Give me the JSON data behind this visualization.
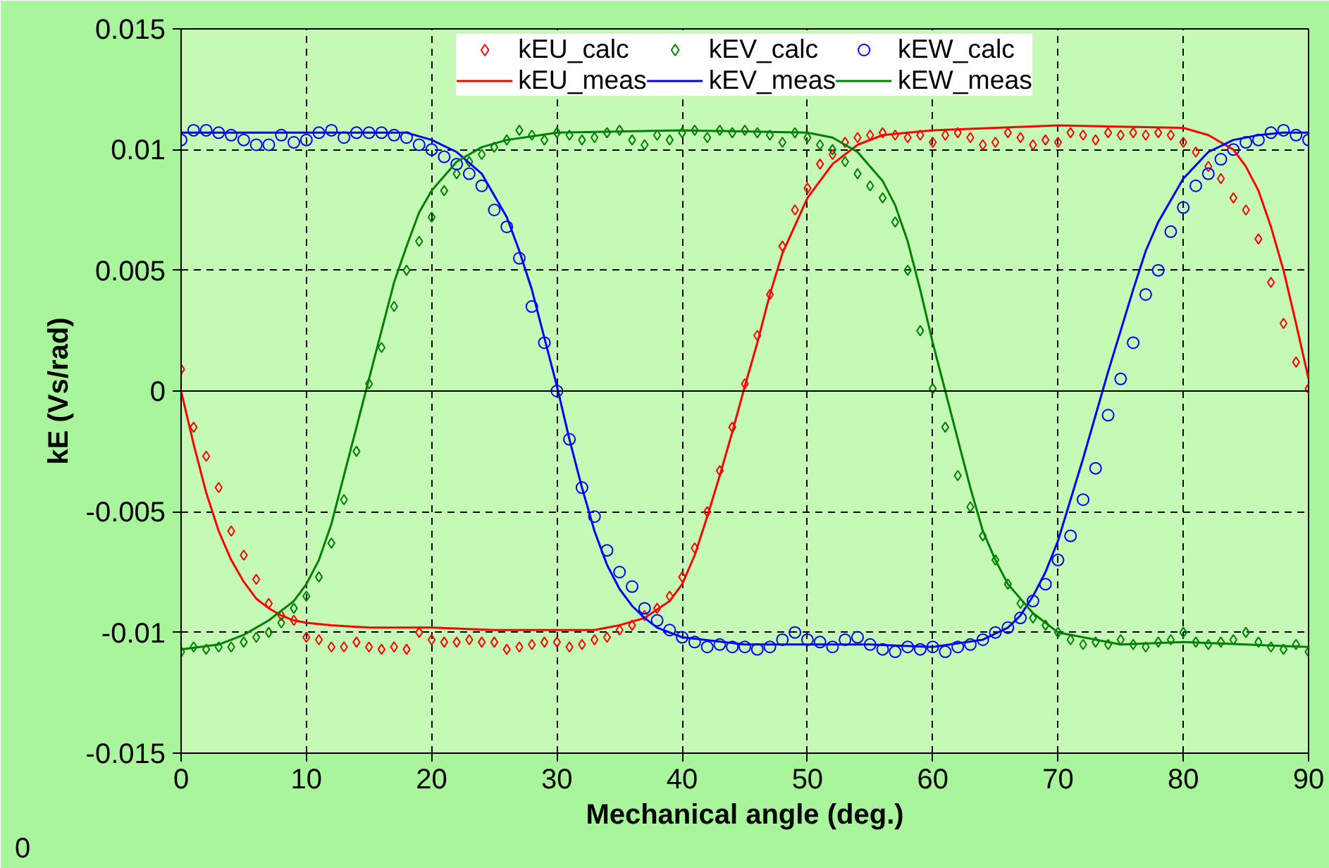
{
  "chart_data": {
    "type": "scatter",
    "xlabel": "Mechanical angle (deg.)",
    "ylabel": "kE (Vs/rad)",
    "annotations": [
      "0"
    ],
    "xlim": [
      0,
      90
    ],
    "xticks": [
      0,
      10,
      20,
      30,
      40,
      50,
      60,
      70,
      80,
      90
    ],
    "ylim": [
      -0.015,
      0.015
    ],
    "yticks": [
      -0.015,
      -0.01,
      -0.005,
      0,
      0.005,
      0.01,
      0.015
    ],
    "grid": true,
    "legend": "top",
    "series": [
      {
        "name": "kEU_calc",
        "marker": "diamond",
        "color": "#ff0000",
        "x": [
          0,
          1,
          2,
          3,
          4,
          5,
          6,
          7,
          8,
          9,
          10,
          11,
          12,
          13,
          14,
          15,
          16,
          17,
          18,
          19,
          20,
          21,
          22,
          23,
          24,
          25,
          26,
          27,
          28,
          29,
          30,
          31,
          32,
          33,
          34,
          35,
          36,
          37,
          38,
          39,
          40,
          41,
          42,
          43,
          44,
          45,
          46,
          47,
          48,
          49,
          50,
          51,
          52,
          53,
          54,
          55,
          56,
          57,
          58,
          59,
          60,
          61,
          62,
          63,
          64,
          65,
          66,
          67,
          68,
          69,
          70,
          71,
          72,
          73,
          74,
          75,
          76,
          77,
          78,
          79,
          80,
          81,
          82,
          83,
          84,
          85,
          86,
          87,
          88,
          89,
          90
        ],
        "values": [
          0.0009,
          -0.0015,
          -0.0027,
          -0.004,
          -0.0058,
          -0.0068,
          -0.0078,
          -0.0088,
          -0.0093,
          -0.0095,
          -0.0102,
          -0.0103,
          -0.0106,
          -0.0106,
          -0.0104,
          -0.0106,
          -0.0107,
          -0.0106,
          -0.0107,
          -0.01,
          -0.0103,
          -0.0104,
          -0.0104,
          -0.0103,
          -0.0104,
          -0.0104,
          -0.0107,
          -0.0106,
          -0.0105,
          -0.0104,
          -0.0104,
          -0.0106,
          -0.0105,
          -0.0103,
          -0.0102,
          -0.0099,
          -0.0097,
          -0.0093,
          -0.009,
          -0.0085,
          -0.0077,
          -0.0065,
          -0.005,
          -0.0033,
          -0.0015,
          0.0003,
          0.0023,
          0.004,
          0.006,
          0.0075,
          0.0084,
          0.0094,
          0.0098,
          0.0103,
          0.0105,
          0.0106,
          0.0107,
          0.0106,
          0.0105,
          0.0106,
          0.0103,
          0.0106,
          0.0107,
          0.0105,
          0.0102,
          0.0103,
          0.0107,
          0.0105,
          0.0102,
          0.0104,
          0.0103,
          0.0107,
          0.0106,
          0.0104,
          0.0107,
          0.0106,
          0.0107,
          0.0106,
          0.0107,
          0.0106,
          0.0103,
          0.0099,
          0.0093,
          0.0088,
          0.008,
          0.0075,
          0.0063,
          0.0045,
          0.0028,
          0.0012,
          0.0001
        ]
      },
      {
        "name": "kEV_calc",
        "marker": "diamond",
        "color": "#008000",
        "x": [
          0,
          1,
          2,
          3,
          4,
          5,
          6,
          7,
          8,
          9,
          10,
          11,
          12,
          13,
          14,
          15,
          16,
          17,
          18,
          19,
          20,
          21,
          22,
          23,
          24,
          25,
          26,
          27,
          28,
          29,
          30,
          31,
          32,
          33,
          34,
          35,
          36,
          37,
          38,
          39,
          40,
          41,
          42,
          43,
          44,
          45,
          46,
          47,
          48,
          49,
          50,
          51,
          52,
          53,
          54,
          55,
          56,
          57,
          58,
          59,
          60,
          61,
          62,
          63,
          64,
          65,
          66,
          67,
          68,
          69,
          70,
          71,
          72,
          73,
          74,
          75,
          76,
          77,
          78,
          79,
          80,
          81,
          82,
          83,
          84,
          85,
          86,
          87,
          88,
          89,
          90
        ],
        "values": [
          -0.0108,
          -0.0106,
          -0.0107,
          -0.0106,
          -0.0106,
          -0.0104,
          -0.0102,
          -0.01,
          -0.0096,
          -0.009,
          -0.0085,
          -0.0077,
          -0.0063,
          -0.0045,
          -0.0025,
          0.0003,
          0.0018,
          0.0035,
          0.005,
          0.0062,
          0.0072,
          0.0083,
          0.009,
          0.0095,
          0.0098,
          0.0101,
          0.0104,
          0.0108,
          0.0106,
          0.0104,
          0.0107,
          0.0106,
          0.0104,
          0.0105,
          0.0107,
          0.0108,
          0.0104,
          0.0102,
          0.0106,
          0.0104,
          0.0107,
          0.0108,
          0.0105,
          0.0108,
          0.0107,
          0.0108,
          0.0107,
          0.0106,
          0.0103,
          0.0107,
          0.0105,
          0.0102,
          0.01,
          0.0095,
          0.009,
          0.0085,
          0.008,
          0.007,
          0.005,
          0.0025,
          0.0001,
          -0.0015,
          -0.0035,
          -0.0048,
          -0.006,
          -0.007,
          -0.008,
          -0.0088,
          -0.0094,
          -0.0097,
          -0.01,
          -0.0103,
          -0.0105,
          -0.0104,
          -0.0105,
          -0.0103,
          -0.0105,
          -0.0106,
          -0.0104,
          -0.0103,
          -0.01,
          -0.0104,
          -0.0105,
          -0.0104,
          -0.0103,
          -0.01,
          -0.0104,
          -0.0106,
          -0.0107,
          -0.0105,
          -0.0108
        ]
      },
      {
        "name": "kEW_calc",
        "marker": "circle",
        "color": "#0000ff",
        "x": [
          0,
          1,
          2,
          3,
          4,
          5,
          6,
          7,
          8,
          9,
          10,
          11,
          12,
          13,
          14,
          15,
          16,
          17,
          18,
          19,
          20,
          21,
          22,
          23,
          24,
          25,
          26,
          27,
          28,
          29,
          30,
          31,
          32,
          33,
          34,
          35,
          36,
          37,
          38,
          39,
          40,
          41,
          42,
          43,
          44,
          45,
          46,
          47,
          48,
          49,
          50,
          51,
          52,
          53,
          54,
          55,
          56,
          57,
          58,
          59,
          60,
          61,
          62,
          63,
          64,
          65,
          66,
          67,
          68,
          69,
          70,
          71,
          72,
          73,
          74,
          75,
          76,
          77,
          78,
          79,
          80,
          81,
          82,
          83,
          84,
          85,
          86,
          87,
          88,
          89,
          90
        ],
        "values": [
          0.0104,
          0.0108,
          0.0108,
          0.0107,
          0.0106,
          0.0104,
          0.0102,
          0.0102,
          0.0106,
          0.0103,
          0.0104,
          0.0107,
          0.0108,
          0.0105,
          0.0107,
          0.0107,
          0.0107,
          0.0106,
          0.0105,
          0.0102,
          0.01,
          0.0097,
          0.0094,
          0.009,
          0.0085,
          0.0075,
          0.0068,
          0.0055,
          0.0035,
          0.002,
          0.0,
          -0.002,
          -0.004,
          -0.0052,
          -0.0066,
          -0.0075,
          -0.0081,
          -0.009,
          -0.0095,
          -0.0099,
          -0.0102,
          -0.0104,
          -0.0106,
          -0.0105,
          -0.0106,
          -0.0106,
          -0.0107,
          -0.0106,
          -0.0103,
          -0.01,
          -0.0103,
          -0.0104,
          -0.0106,
          -0.0103,
          -0.0102,
          -0.0105,
          -0.0107,
          -0.0108,
          -0.0106,
          -0.0107,
          -0.0106,
          -0.0108,
          -0.0106,
          -0.0105,
          -0.0103,
          -0.01,
          -0.0098,
          -0.0094,
          -0.0087,
          -0.008,
          -0.007,
          -0.006,
          -0.0045,
          -0.0032,
          -0.001,
          0.0005,
          0.002,
          0.004,
          0.005,
          0.0066,
          0.0076,
          0.0085,
          0.009,
          0.0096,
          0.01,
          0.0103,
          0.0104,
          0.0107,
          0.0108,
          0.0106,
          0.0104
        ]
      },
      {
        "name": "kEU_meas",
        "type": "line",
        "color": "#ff0000",
        "x": [
          0,
          1,
          2,
          3,
          4,
          5,
          6,
          7,
          8,
          9,
          10,
          12,
          15,
          20,
          25,
          30,
          33,
          35,
          37,
          39,
          40,
          41,
          42,
          43,
          44,
          45,
          46,
          47,
          48,
          50,
          52,
          54,
          56,
          60,
          70,
          80,
          82,
          84,
          85,
          86,
          87,
          88,
          89,
          90
        ],
        "values": [
          0,
          -0.0022,
          -0.0042,
          -0.0058,
          -0.007,
          -0.0079,
          -0.0086,
          -0.009,
          -0.0093,
          -0.0095,
          -0.0096,
          -0.0097,
          -0.0098,
          -0.0098,
          -0.0099,
          -0.0099,
          -0.0099,
          -0.0097,
          -0.0094,
          -0.0087,
          -0.008,
          -0.0068,
          -0.0052,
          -0.0035,
          -0.0017,
          0.0002,
          0.002,
          0.004,
          0.0057,
          0.008,
          0.0094,
          0.0102,
          0.0106,
          0.0108,
          0.011,
          0.0109,
          0.0106,
          0.01,
          0.0093,
          0.0083,
          0.0068,
          0.005,
          0.0028,
          0.0005
        ]
      },
      {
        "name": "kEV_meas",
        "type": "line",
        "color": "#0000ff",
        "x": [
          0,
          10,
          18,
          20,
          22,
          24,
          26,
          27,
          28,
          29,
          30,
          31,
          32,
          33,
          34,
          35,
          36,
          37,
          38,
          40,
          45,
          50,
          55,
          60,
          64,
          66,
          67,
          68,
          69,
          70,
          71,
          72,
          73,
          74,
          75,
          76,
          77,
          78,
          80,
          82,
          84,
          86,
          88,
          90
        ],
        "values": [
          0.0107,
          0.0107,
          0.0107,
          0.0104,
          0.0099,
          0.009,
          0.0072,
          0.0058,
          0.0042,
          0.0022,
          0.0002,
          -0.002,
          -0.004,
          -0.0058,
          -0.0072,
          -0.0082,
          -0.0089,
          -0.0094,
          -0.0098,
          -0.0102,
          -0.0105,
          -0.0105,
          -0.0105,
          -0.0106,
          -0.0103,
          -0.0098,
          -0.0093,
          -0.0085,
          -0.0075,
          -0.0062,
          -0.0045,
          -0.0028,
          -0.001,
          0.0008,
          0.0025,
          0.0042,
          0.0058,
          0.007,
          0.0088,
          0.0099,
          0.0104,
          0.0106,
          0.0107,
          0.0107
        ]
      },
      {
        "name": "kEW_meas",
        "type": "line",
        "color": "#008000",
        "x": [
          0,
          3,
          5,
          7,
          9,
          10,
          11,
          12,
          13,
          14,
          15,
          16,
          17,
          18,
          19,
          20,
          22,
          24,
          26,
          30,
          40,
          50,
          52,
          54,
          56,
          57,
          58,
          59,
          60,
          61,
          62,
          63,
          64,
          65,
          66,
          68,
          70,
          75,
          80,
          85,
          90
        ],
        "values": [
          -0.0107,
          -0.0105,
          -0.0101,
          -0.0095,
          -0.0087,
          -0.008,
          -0.007,
          -0.0055,
          -0.0035,
          -0.0015,
          0.0005,
          0.0025,
          0.0045,
          0.006,
          0.0074,
          0.0083,
          0.0095,
          0.0101,
          0.0104,
          0.0107,
          0.0108,
          0.0107,
          0.0105,
          0.0099,
          0.0087,
          0.0077,
          0.0062,
          0.0042,
          0.002,
          0.0,
          -0.002,
          -0.004,
          -0.0058,
          -0.007,
          -0.008,
          -0.0092,
          -0.01,
          -0.0105,
          -0.0104,
          -0.0105,
          -0.0106
        ]
      }
    ]
  }
}
